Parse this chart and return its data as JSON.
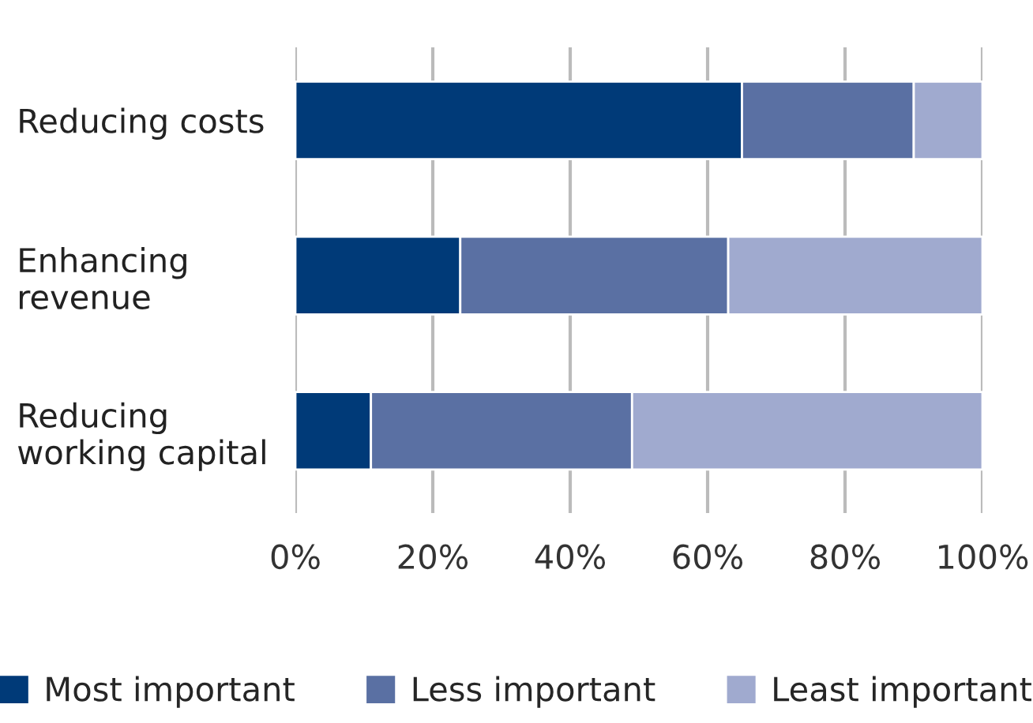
{
  "chart_data": {
    "type": "bar",
    "orientation": "horizontal",
    "stacked": true,
    "categories": [
      "Reducing costs",
      "Enhancing\nrevenue",
      "Reducing\nworking capital"
    ],
    "series": [
      {
        "name": "Most important",
        "color": "#003a78",
        "values": [
          65,
          24,
          11
        ]
      },
      {
        "name": "Less important",
        "color": "#5a70a3",
        "values": [
          25,
          39,
          38
        ]
      },
      {
        "name": "Least important",
        "color": "#a0aacf",
        "values": [
          10,
          37,
          51
        ]
      }
    ],
    "xlim": [
      0,
      100
    ],
    "xticks": [
      {
        "value": 0,
        "label": "0%"
      },
      {
        "value": 20,
        "label": "20%"
      },
      {
        "value": 40,
        "label": "40%"
      },
      {
        "value": 60,
        "label": "60%"
      },
      {
        "value": 80,
        "label": "80%"
      },
      {
        "value": 100,
        "label": "100%"
      }
    ],
    "grid": "x",
    "legend": "bottom"
  }
}
